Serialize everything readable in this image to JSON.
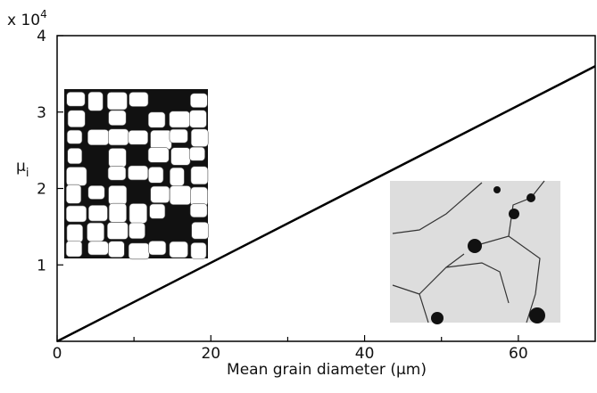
{
  "chart_data": {
    "type": "line",
    "scale_label": {
      "base": "x 10",
      "exponent": "4"
    },
    "ylabel": {
      "symbol": "μ",
      "subscript": "i"
    },
    "xlabel": "Mean grain diameter (μm)",
    "x": [
      0,
      70
    ],
    "series": [
      {
        "color": "#000000",
        "values": [
          0,
          3.6
        ]
      }
    ],
    "xlim": [
      0,
      70
    ],
    "xticks": [
      0,
      20,
      40,
      60
    ],
    "xminorticks": [
      10,
      30,
      50
    ],
    "ylim": [
      0,
      4
    ],
    "yticks": [
      1,
      2,
      3,
      4
    ]
  }
}
